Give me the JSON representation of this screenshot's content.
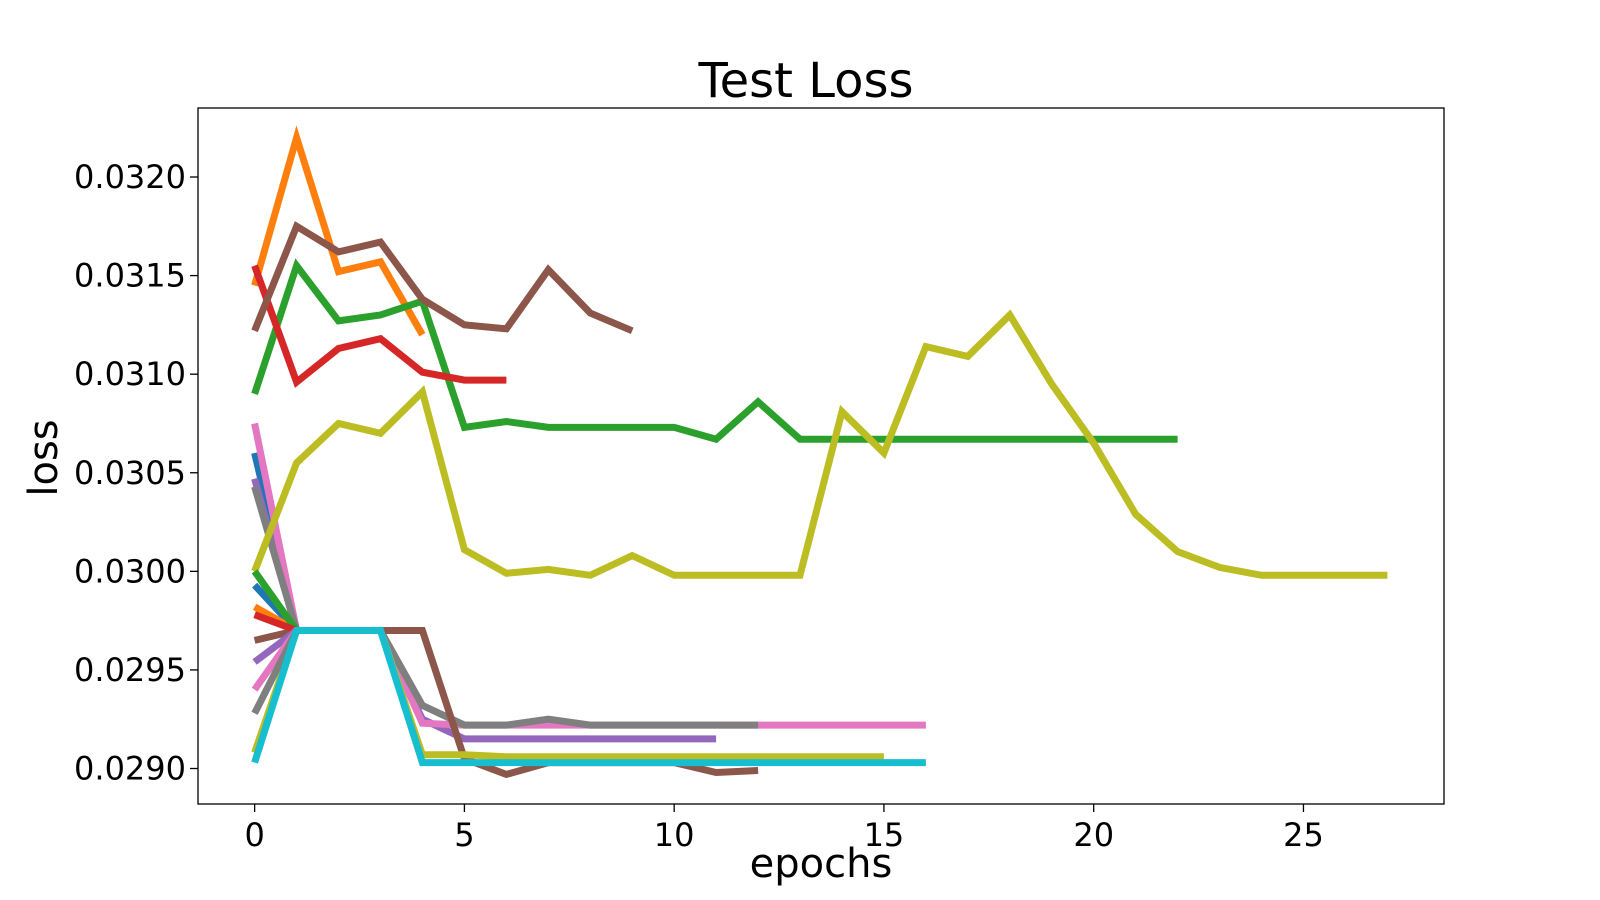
{
  "chart_data": {
    "type": "line",
    "title": "Test Loss",
    "xlabel": "epochs",
    "ylabel": "loss",
    "xlim": [
      -1.35,
      28.35
    ],
    "ylim": [
      0.02882,
      0.03235
    ],
    "x_ticks": [
      0,
      5,
      10,
      15,
      20,
      25
    ],
    "y_ticks": [
      0.029,
      0.0295,
      0.03,
      0.0305,
      0.031,
      0.0315,
      0.032
    ],
    "y_tick_labels": [
      "0.0290",
      "0.0295",
      "0.0300",
      "0.0305",
      "0.0310",
      "0.0315",
      "0.0320"
    ],
    "grid": false,
    "legend": "none",
    "series": [
      {
        "color": "#1f77b4",
        "x": [
          0,
          1
        ],
        "y": [
          0.0306,
          0.0297
        ]
      },
      {
        "color": "#ff7f0e",
        "x": [
          0,
          1,
          2,
          3,
          4
        ],
        "y": [
          0.03145,
          0.0322,
          0.03152,
          0.03157,
          0.0312
        ]
      },
      {
        "color": "#2ca02c",
        "x": [
          0,
          1,
          2,
          3,
          4,
          5,
          6,
          7,
          8,
          9,
          10,
          11,
          12,
          13,
          14,
          15,
          16,
          17,
          18,
          19,
          20,
          21,
          22
        ],
        "y": [
          0.0309,
          0.03155,
          0.03127,
          0.0313,
          0.03137,
          0.03073,
          0.03076,
          0.03073,
          0.03073,
          0.03073,
          0.03073,
          0.03067,
          0.03086,
          0.03067,
          0.03067,
          0.03067,
          0.03067,
          0.03067,
          0.03067,
          0.03067,
          0.03067,
          0.03067,
          0.03067
        ]
      },
      {
        "color": "#d62728",
        "x": [
          0,
          1,
          2,
          3,
          4,
          5,
          6
        ],
        "y": [
          0.03155,
          0.03096,
          0.03113,
          0.03118,
          0.03101,
          0.03097,
          0.03097
        ]
      },
      {
        "color": "#9467bd",
        "x": [
          0,
          1,
          2,
          3,
          4,
          5,
          6,
          7,
          8,
          9,
          10,
          11
        ],
        "y": [
          0.03047,
          0.0297,
          0.0297,
          0.0297,
          0.02925,
          0.02915,
          0.02915,
          0.02915,
          0.02915,
          0.02915,
          0.02915,
          0.02915
        ]
      },
      {
        "color": "#8c564b",
        "x": [
          0,
          1,
          2,
          3,
          4,
          5,
          6,
          7,
          8,
          9
        ],
        "y": [
          0.03122,
          0.03175,
          0.03162,
          0.03167,
          0.03138,
          0.03125,
          0.03123,
          0.03153,
          0.03131,
          0.03122
        ]
      },
      {
        "color": "#e377c2",
        "x": [
          0,
          1,
          2,
          3,
          4,
          5,
          6,
          7,
          8,
          9,
          10,
          11,
          12,
          13,
          14,
          15,
          16
        ],
        "y": [
          0.03075,
          0.0297,
          0.0297,
          0.0297,
          0.02923,
          0.02922,
          0.02922,
          0.02922,
          0.02922,
          0.02922,
          0.02922,
          0.02922,
          0.02922,
          0.02922,
          0.02922,
          0.02922,
          0.02922
        ]
      },
      {
        "color": "#7f7f7f",
        "x": [
          0,
          1,
          2,
          3,
          4,
          5,
          6,
          7,
          8,
          9,
          10,
          11,
          12
        ],
        "y": [
          0.03043,
          0.0297,
          0.0297,
          0.0297,
          0.02932,
          0.02922,
          0.02922,
          0.02925,
          0.02922,
          0.02922,
          0.02922,
          0.02922,
          0.02922
        ]
      },
      {
        "color": "#bcbd22",
        "x": [
          0,
          1,
          2,
          3,
          4,
          5,
          6,
          7,
          8,
          9,
          10,
          11,
          12,
          13,
          14,
          15,
          16,
          17,
          18,
          19,
          20,
          21,
          22,
          23,
          24,
          25,
          26,
          27
        ],
        "y": [
          0.03,
          0.03055,
          0.03075,
          0.0307,
          0.03091,
          0.03011,
          0.02999,
          0.03001,
          0.02998,
          0.03008,
          0.02998,
          0.02998,
          0.02998,
          0.02998,
          0.03081,
          0.0306,
          0.03114,
          0.03109,
          0.0313,
          0.03095,
          0.03065,
          0.03029,
          0.0301,
          0.03002,
          0.02998,
          0.02998,
          0.02998,
          0.02998
        ]
      },
      {
        "color": "#8c564b",
        "x": [
          0,
          1,
          2,
          3,
          4,
          5,
          6,
          7,
          8,
          9,
          10,
          11,
          12
        ],
        "y": [
          0.02965,
          0.0297,
          0.0297,
          0.0297,
          0.0297,
          0.02905,
          0.02897,
          0.02903,
          0.02903,
          0.02903,
          0.02903,
          0.02898,
          0.02899
        ]
      },
      {
        "color": "#bcbd22",
        "x": [
          0,
          1,
          2,
          3,
          4,
          5,
          6,
          7,
          8,
          9,
          10,
          11,
          12,
          13,
          14,
          15
        ],
        "y": [
          0.02908,
          0.0297,
          0.0297,
          0.0297,
          0.02907,
          0.02907,
          0.02906,
          0.02906,
          0.02906,
          0.02906,
          0.02906,
          0.02906,
          0.02906,
          0.02906,
          0.02906,
          0.02906
        ]
      },
      {
        "color": "#1f77b4",
        "x": [
          0,
          1
        ],
        "y": [
          0.02993,
          0.0297
        ]
      },
      {
        "color": "#ff7f0e",
        "x": [
          0,
          1
        ],
        "y": [
          0.02982,
          0.0297
        ]
      },
      {
        "color": "#2ca02c",
        "x": [
          0,
          1
        ],
        "y": [
          0.03,
          0.0297
        ]
      },
      {
        "color": "#d62728",
        "x": [
          0,
          1
        ],
        "y": [
          0.02978,
          0.0297
        ]
      },
      {
        "color": "#9467bd",
        "x": [
          0,
          1
        ],
        "y": [
          0.02954,
          0.0297
        ]
      },
      {
        "color": "#e377c2",
        "x": [
          0,
          1
        ],
        "y": [
          0.0294,
          0.0297
        ]
      },
      {
        "color": "#7f7f7f",
        "x": [
          0,
          1
        ],
        "y": [
          0.02928,
          0.0297
        ]
      },
      {
        "color": "#17becf",
        "x": [
          0,
          1,
          2,
          3,
          4,
          5,
          6,
          7,
          8,
          9,
          10,
          11,
          12,
          13,
          14,
          15,
          16
        ],
        "y": [
          0.02903,
          0.0297,
          0.0297,
          0.0297,
          0.02903,
          0.02903,
          0.02903,
          0.02903,
          0.02903,
          0.02903,
          0.02903,
          0.02903,
          0.02903,
          0.02903,
          0.02903,
          0.02903,
          0.02903
        ]
      }
    ]
  }
}
